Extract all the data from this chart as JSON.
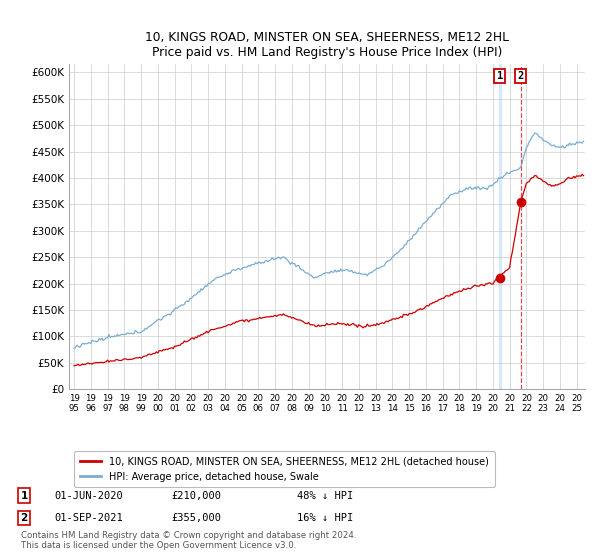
{
  "title": "10, KINGS ROAD, MINSTER ON SEA, SHEERNESS, ME12 2HL",
  "subtitle": "Price paid vs. HM Land Registry's House Price Index (HPI)",
  "ylabel_ticks": [
    "£0",
    "£50K",
    "£100K",
    "£150K",
    "£200K",
    "£250K",
    "£300K",
    "£350K",
    "£400K",
    "£450K",
    "£500K",
    "£550K",
    "£600K"
  ],
  "ytick_values": [
    0,
    50000,
    100000,
    150000,
    200000,
    250000,
    300000,
    350000,
    400000,
    450000,
    500000,
    550000,
    600000
  ],
  "xlim_start": 1994.7,
  "xlim_end": 2025.5,
  "ylim_min": 0,
  "ylim_max": 615000,
  "legend_entry1": "10, KINGS ROAD, MINSTER ON SEA, SHEERNESS, ME12 2HL (detached house)",
  "legend_entry2": "HPI: Average price, detached house, Swale",
  "sale1_year": 2020.417,
  "sale1_price": 210000,
  "sale2_year": 2021.667,
  "sale2_price": 355000,
  "footnote": "Contains HM Land Registry data © Crown copyright and database right 2024.\nThis data is licensed under the Open Government Licence v3.0.",
  "hpi_color": "#7aadd4",
  "price_color": "#cc0000",
  "background_color": "#ffffff",
  "grid_color": "#cccccc"
}
